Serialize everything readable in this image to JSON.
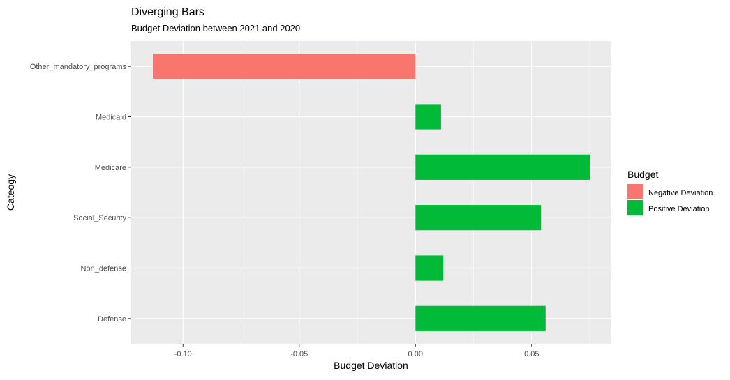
{
  "chart_data": {
    "type": "bar",
    "orientation": "horizontal",
    "title": "Diverging Bars",
    "subtitle": "Budget Deviation between 2021 and 2020",
    "xlabel": "Budget Deviation",
    "ylabel": "Cateogy",
    "xlim": [
      -0.1226,
      0.0843
    ],
    "xticks": [
      -0.1,
      -0.05,
      0.0,
      0.05
    ],
    "xtick_labels": [
      "-0.10",
      "-0.05",
      "0.00",
      "0.05"
    ],
    "categories": [
      "Other_mandatory_programs",
      "Medicaid",
      "Medicare",
      "Social_Security",
      "Non_defense",
      "Defense"
    ],
    "values": [
      -0.113,
      0.011,
      0.075,
      0.054,
      0.012,
      0.056
    ],
    "groups": [
      "Negative Deviation",
      "Positive Deviation",
      "Positive Deviation",
      "Positive Deviation",
      "Positive Deviation",
      "Positive Deviation"
    ],
    "grid": true,
    "legend": {
      "title": "Budget",
      "position": "right",
      "items": [
        {
          "label": "Negative Deviation",
          "color": "#F8766D"
        },
        {
          "label": "Positive Deviation",
          "color": "#00BA38"
        }
      ]
    }
  }
}
